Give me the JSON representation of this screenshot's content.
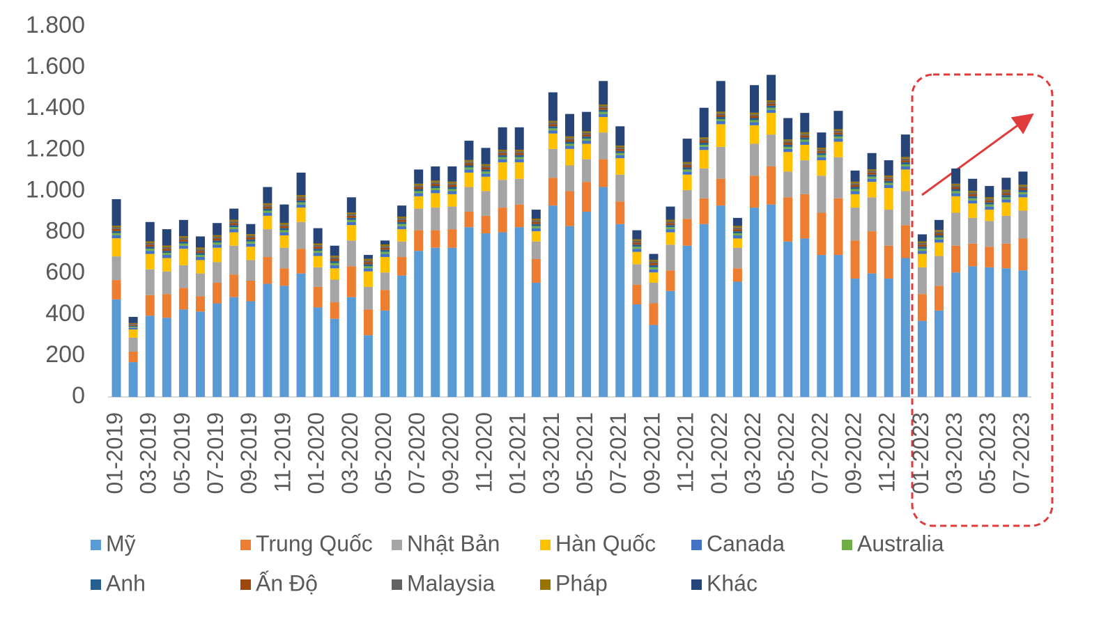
{
  "chart_data": {
    "type": "stacked-bar",
    "categories": [
      "01-2019",
      null,
      "03-2019",
      null,
      "05-2019",
      null,
      "07-2019",
      null,
      "09-2019",
      null,
      "11-2019",
      null,
      "01-2020",
      null,
      "03-2020",
      null,
      "05-2020",
      null,
      "07-2020",
      null,
      "09-2020",
      null,
      "11-2020",
      null,
      "01-2021",
      null,
      "03-2021",
      null,
      "05-2021",
      null,
      "07-2021",
      null,
      "09-2021",
      null,
      "11-2021",
      null,
      "01-2022",
      null,
      "03-2022",
      null,
      "05-2022",
      null,
      "07-2022",
      null,
      "09-2022",
      null,
      "11-2022",
      null,
      "01-2023",
      null,
      "03-2023",
      null,
      "05-2023",
      null,
      "07-2023"
    ],
    "series": [
      {
        "name": "Mỹ",
        "color": "#5b9bd5",
        "values": [
          474,
          169,
          395,
          385,
          425,
          415,
          455,
          485,
          465,
          550,
          540,
          600,
          435,
          380,
          485,
          300,
          420,
          590,
          710,
          725,
          725,
          825,
          795,
          800,
          825,
          555,
          930,
          830,
          900,
          1020,
          840,
          450,
          350,
          515,
          735,
          840,
          930,
          560,
          920,
          935,
          755,
          770,
          690,
          690,
          575,
          600,
          575,
          675,
          370,
          420,
          605,
          635,
          630,
          625,
          615
        ]
      },
      {
        "name": "Trung Quốc",
        "color": "#ed7d31",
        "values": [
          94,
          51,
          100,
          115,
          105,
          75,
          100,
          110,
          100,
          130,
          85,
          120,
          100,
          80,
          150,
          125,
          100,
          90,
          100,
          85,
          90,
          75,
          85,
          120,
          110,
          115,
          135,
          170,
          145,
          135,
          110,
          95,
          105,
          100,
          130,
          125,
          130,
          65,
          155,
          185,
          215,
          215,
          205,
          275,
          185,
          205,
          160,
          160,
          130,
          120,
          130,
          110,
          100,
          120,
          155
        ]
      },
      {
        "name": "Nhật Bản",
        "color": "#a5a5a5",
        "values": [
          115,
          68,
          125,
          110,
          110,
          110,
          100,
          140,
          100,
          135,
          100,
          130,
          95,
          110,
          125,
          110,
          85,
          75,
          105,
          110,
          110,
          120,
          120,
          135,
          125,
          85,
          140,
          125,
          110,
          130,
          130,
          100,
          100,
          125,
          140,
          145,
          155,
          100,
          155,
          155,
          125,
          165,
          180,
          200,
          160,
          165,
          175,
          165,
          130,
          145,
          160,
          125,
          125,
          135,
          135
        ]
      },
      {
        "name": "Hàn Quốc",
        "color": "#ffc000",
        "values": [
          88,
          40,
          75,
          65,
          80,
          65,
          70,
          65,
          65,
          65,
          60,
          70,
          55,
          55,
          75,
          75,
          75,
          60,
          60,
          70,
          60,
          70,
          70,
          85,
          80,
          50,
          75,
          80,
          75,
          75,
          80,
          60,
          50,
          60,
          75,
          90,
          110,
          45,
          90,
          105,
          95,
          75,
          75,
          75,
          65,
          75,
          105,
          105,
          65,
          65,
          80,
          70,
          55,
          65,
          65
        ]
      },
      {
        "name": "Canada",
        "color": "#4472c4",
        "values": [
          15,
          8,
          15,
          15,
          15,
          15,
          15,
          15,
          15,
          15,
          15,
          15,
          15,
          15,
          15,
          15,
          15,
          15,
          15,
          15,
          15,
          15,
          15,
          15,
          15,
          15,
          15,
          15,
          15,
          15,
          15,
          15,
          15,
          15,
          15,
          15,
          15,
          15,
          15,
          15,
          15,
          15,
          15,
          15,
          15,
          15,
          15,
          15,
          15,
          15,
          15,
          15,
          15,
          15,
          15
        ]
      },
      {
        "name": "Australia",
        "color": "#70ad47",
        "values": [
          10,
          5,
          10,
          10,
          10,
          10,
          10,
          10,
          10,
          10,
          10,
          10,
          10,
          10,
          10,
          10,
          10,
          10,
          10,
          10,
          10,
          10,
          10,
          10,
          10,
          10,
          10,
          10,
          10,
          10,
          10,
          10,
          10,
          10,
          10,
          10,
          10,
          10,
          10,
          10,
          10,
          10,
          10,
          10,
          10,
          10,
          10,
          10,
          10,
          10,
          10,
          10,
          10,
          10,
          10
        ]
      },
      {
        "name": "Anh",
        "color": "#255e91",
        "values": [
          10,
          5,
          10,
          10,
          10,
          10,
          10,
          10,
          10,
          10,
          10,
          10,
          10,
          10,
          10,
          10,
          10,
          10,
          10,
          10,
          10,
          10,
          10,
          10,
          10,
          10,
          10,
          10,
          10,
          10,
          10,
          10,
          10,
          10,
          10,
          10,
          10,
          10,
          10,
          10,
          10,
          10,
          10,
          10,
          10,
          10,
          10,
          10,
          10,
          10,
          10,
          10,
          10,
          10,
          10
        ]
      },
      {
        "name": "Ấn Độ",
        "color": "#9e480e",
        "values": [
          10,
          5,
          10,
          10,
          10,
          10,
          10,
          10,
          10,
          10,
          10,
          10,
          10,
          10,
          10,
          10,
          10,
          10,
          10,
          10,
          10,
          10,
          10,
          10,
          10,
          10,
          10,
          10,
          10,
          10,
          10,
          10,
          10,
          10,
          10,
          10,
          10,
          10,
          10,
          10,
          10,
          10,
          10,
          10,
          10,
          10,
          10,
          10,
          10,
          10,
          10,
          10,
          10,
          10,
          10
        ]
      },
      {
        "name": "Malaysia",
        "color": "#636363",
        "values": [
          8,
          4,
          8,
          8,
          8,
          8,
          8,
          8,
          8,
          8,
          8,
          8,
          8,
          8,
          8,
          8,
          8,
          8,
          8,
          8,
          8,
          8,
          8,
          8,
          8,
          8,
          8,
          8,
          8,
          8,
          8,
          8,
          8,
          8,
          8,
          8,
          8,
          8,
          8,
          8,
          8,
          8,
          8,
          8,
          8,
          8,
          8,
          8,
          8,
          8,
          8,
          8,
          8,
          8,
          8
        ]
      },
      {
        "name": "Pháp",
        "color": "#997300",
        "values": [
          8,
          4,
          8,
          8,
          8,
          8,
          8,
          8,
          8,
          8,
          8,
          8,
          8,
          8,
          8,
          8,
          8,
          8,
          8,
          8,
          8,
          8,
          8,
          8,
          8,
          8,
          8,
          8,
          8,
          8,
          8,
          8,
          8,
          8,
          8,
          8,
          8,
          8,
          8,
          8,
          8,
          8,
          8,
          8,
          8,
          8,
          8,
          8,
          8,
          8,
          8,
          8,
          8,
          8,
          8
        ]
      },
      {
        "name": "Khác",
        "color": "#264478",
        "values": [
          129,
          30,
          94,
          79,
          79,
          54,
          59,
          54,
          49,
          79,
          89,
          109,
          74,
          49,
          74,
          19,
          19,
          54,
          69,
          69,
          74,
          94,
          79,
          109,
          109,
          44,
          139,
          109,
          94,
          114,
          94,
          44,
          29,
          64,
          114,
          144,
          149,
          39,
          134,
          124,
          104,
          94,
          74,
          89,
          54,
          79,
          74,
          109,
          34,
          49,
          74,
          59,
          54,
          59,
          64
        ]
      }
    ],
    "ylim": [
      0,
      1800
    ],
    "yticks": [
      0,
      200,
      400,
      600,
      800,
      {
        "value": 1000,
        "label": "1.000"
      },
      {
        "value": 1200,
        "label": "1.200"
      },
      {
        "value": 1400,
        "label": "1.400"
      },
      {
        "value": 1600,
        "label": "1.600"
      },
      {
        "value": 1800,
        "label": "1.800"
      }
    ],
    "grid": false
  }
}
